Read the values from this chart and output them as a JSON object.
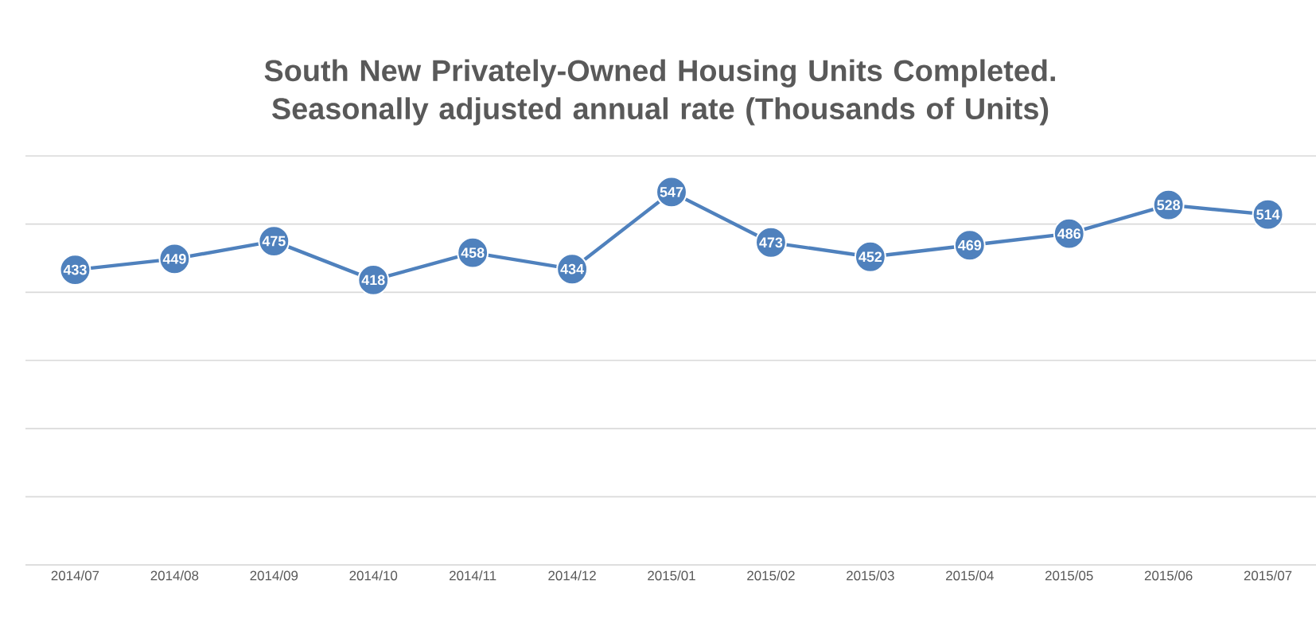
{
  "chart_data": {
    "type": "line",
    "title": "South New Privately-Owned Housing Units Completed. Seasonally adjusted annual rate (Thousands of Units)",
    "categories": [
      "2014/07",
      "2014/08",
      "2014/09",
      "2014/10",
      "2014/11",
      "2014/12",
      "2015/01",
      "2015/02",
      "2015/03",
      "2015/04",
      "2015/05",
      "2015/06",
      "2015/07"
    ],
    "series": [
      {
        "color": "#4f81bd",
        "values": [
          433,
          449,
          475,
          418,
          458,
          434,
          547,
          473,
          452,
          469,
          486,
          528,
          514
        ]
      }
    ],
    "ylim": [
      0,
      600
    ],
    "yticks": [
      {
        "value": 0,
        "label": null
      },
      {
        "value": 100,
        "label": null
      },
      {
        "value": 200,
        "label": null
      },
      {
        "value": 300,
        "label": null
      },
      {
        "value": 400,
        "label": null
      },
      {
        "value": 500,
        "label": null
      },
      {
        "value": 600,
        "label": null
      }
    ],
    "tick_labels": "x",
    "grid": "y",
    "marker": "circle",
    "line_style": "solid",
    "data_labels": true
  }
}
